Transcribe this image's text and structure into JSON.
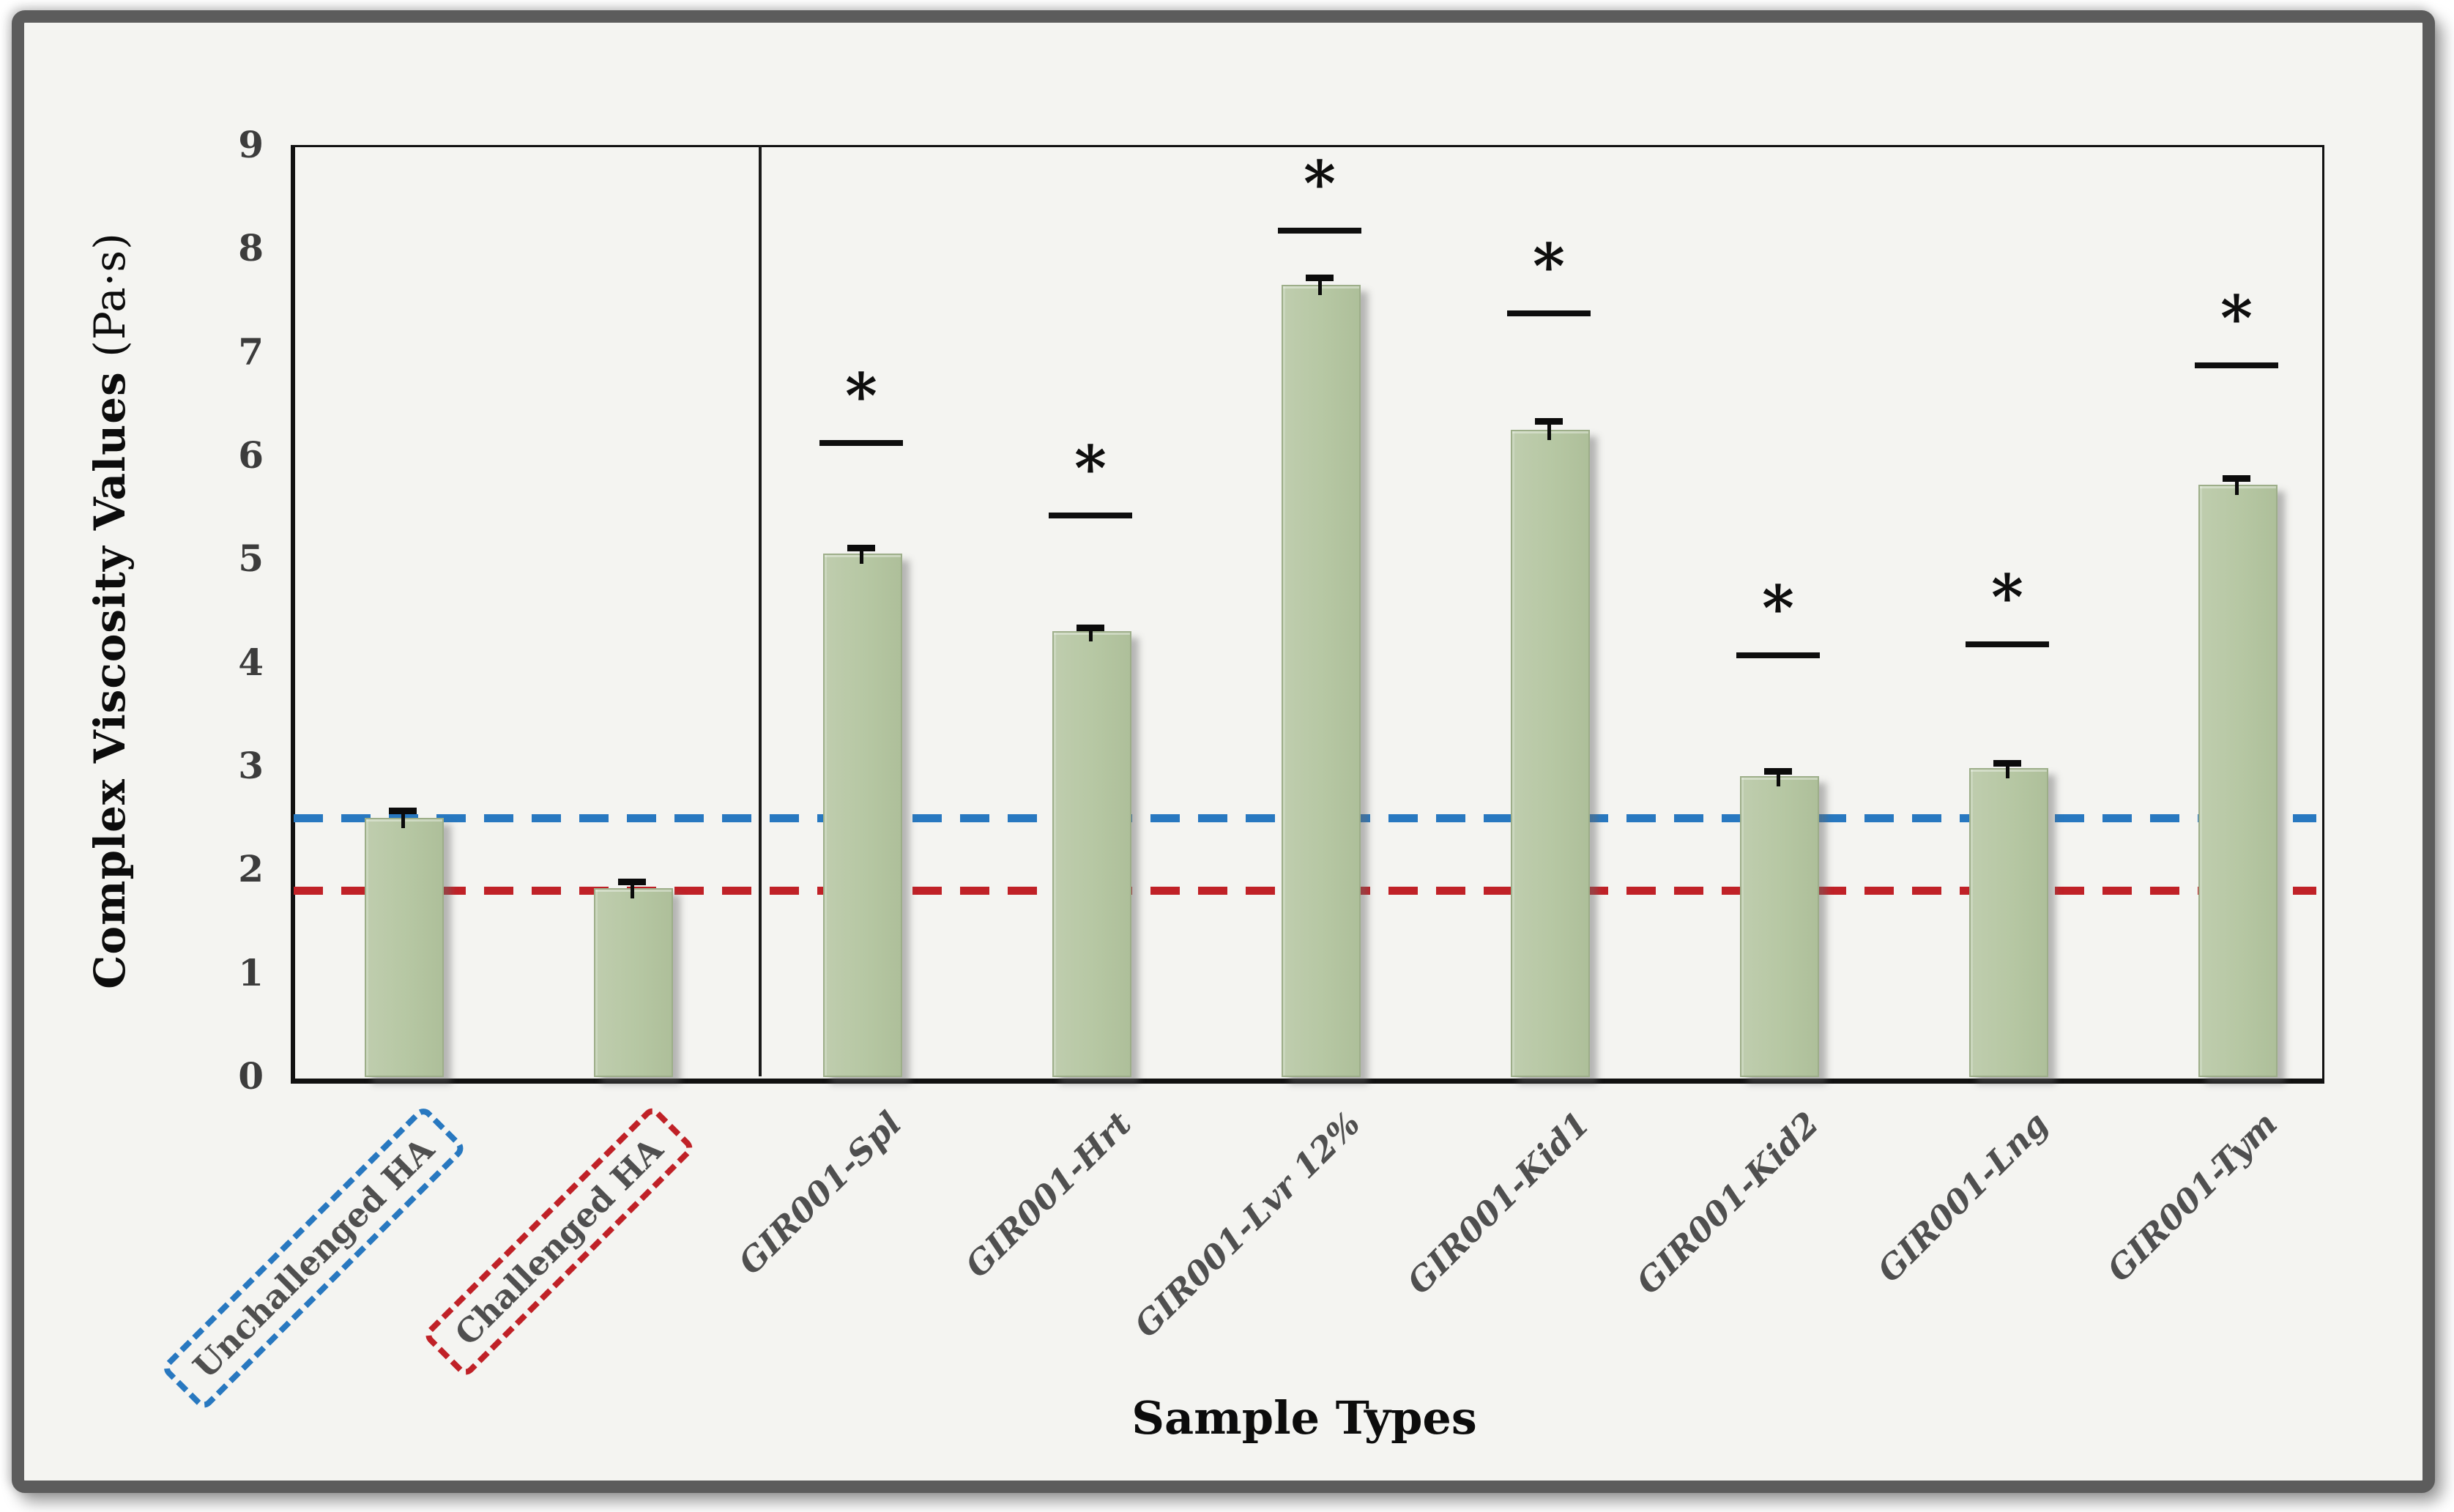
{
  "figure": {
    "background_color": "#f4f4f1",
    "frame_color": "#5c5c5c"
  },
  "chart_data": {
    "type": "bar",
    "title": "",
    "xlabel": "Sample Types",
    "ylabel": "Complex Viscosity Values (Pa·s)",
    "ylabel_main": "Complex Viscosity Values",
    "ylabel_unit": "(Pa·s)",
    "ylim": [
      0,
      9
    ],
    "yticks": [
      0,
      1,
      2,
      3,
      4,
      5,
      6,
      7,
      8,
      9
    ],
    "grid": false,
    "legend": "none",
    "bar_color": "#b6c7a3",
    "bar_edge_color": "#9dae89",
    "categories": [
      {
        "label": "Unchallenged HA",
        "boxed": true,
        "box_color": "#2878c0",
        "italic": false
      },
      {
        "label": "Challenged HA",
        "boxed": true,
        "box_color": "#c02127",
        "italic": false
      },
      {
        "label": "GIR001-Spl",
        "boxed": false,
        "box_color": null,
        "italic": true
      },
      {
        "label": "GIR001-Hrt",
        "boxed": false,
        "box_color": null,
        "italic": true
      },
      {
        "label": "GIR001-Lvr 12%",
        "boxed": false,
        "box_color": null,
        "italic": true
      },
      {
        "label": "GIR001-Kid1",
        "boxed": false,
        "box_color": null,
        "italic": true
      },
      {
        "label": "GIR001-Kid2",
        "boxed": false,
        "box_color": null,
        "italic": true
      },
      {
        "label": "GIR001-Lng",
        "boxed": false,
        "box_color": null,
        "italic": true
      },
      {
        "label": "GIR001-Tym",
        "boxed": false,
        "box_color": null,
        "italic": true
      }
    ],
    "series": [
      {
        "name": "Complex viscosity",
        "values": [
          2.5,
          1.82,
          5.05,
          4.3,
          7.65,
          6.25,
          2.9,
          2.98,
          5.72
        ]
      }
    ],
    "errors_upper": [
      0.07,
      0.06,
      0.06,
      0.04,
      0.07,
      0.08,
      0.05,
      0.05,
      0.06
    ],
    "significance_marker": "*",
    "significance_lines": [
      null,
      null,
      6.15,
      5.45,
      8.2,
      7.4,
      4.1,
      4.2,
      6.9
    ],
    "reference_lines": [
      {
        "name": "Unchallenged HA level",
        "value": 2.5,
        "color": "#2878c0",
        "style": "dashed"
      },
      {
        "name": "Challenged HA level",
        "value": 1.8,
        "color": "#c02127",
        "style": "dashed"
      }
    ],
    "group_divider_after_index": 1
  }
}
